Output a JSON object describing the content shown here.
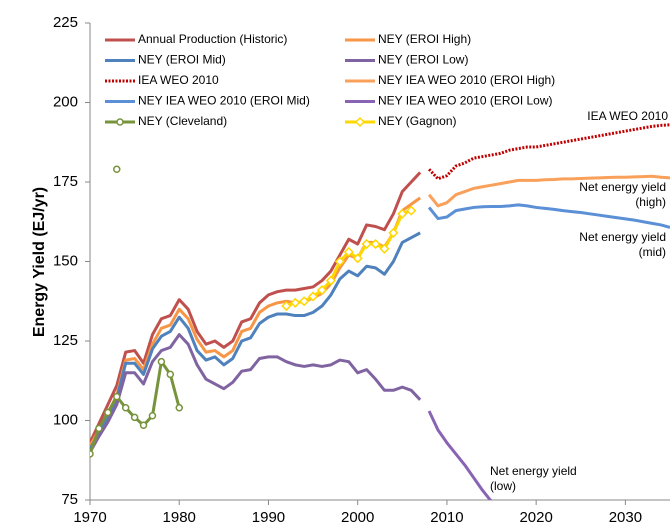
{
  "chart_data": {
    "type": "line",
    "y_label": "Energy Yield (EJ/yr)",
    "xlim": [
      1970,
      2035
    ],
    "xticks": [
      1970,
      1980,
      1990,
      2000,
      2010,
      2020,
      2030
    ],
    "ylim": [
      75,
      225
    ],
    "yticks": [
      75,
      100,
      125,
      150,
      175,
      200,
      225
    ],
    "grid": false,
    "series": [
      {
        "name": "Annual Production (Historic)",
        "color": "#c0504d",
        "x": [
          1970,
          1971,
          1972,
          1973,
          1974,
          1975,
          1976,
          1977,
          1978,
          1979,
          1980,
          1981,
          1982,
          1983,
          1984,
          1985,
          1986,
          1987,
          1988,
          1989,
          1990,
          1991,
          1992,
          1993,
          1994,
          1995,
          1996,
          1997,
          1998,
          1999,
          2000,
          2001,
          2002,
          2003,
          2004,
          2005,
          2006,
          2007
        ],
        "values": [
          93,
          99,
          105,
          111,
          121.5,
          122,
          118,
          127,
          132,
          133,
          138,
          135,
          128,
          124,
          125,
          123,
          125,
          131,
          132,
          137,
          139.5,
          140.5,
          141,
          141,
          141.5,
          142,
          144,
          147,
          152,
          157,
          155.5,
          161.5,
          161,
          160,
          165,
          172,
          175,
          178
        ]
      },
      {
        "name": "NEY (EROI High)",
        "color": "#f79646",
        "x": [
          1970,
          1971,
          1972,
          1973,
          1974,
          1975,
          1976,
          1977,
          1978,
          1979,
          1980,
          1981,
          1982,
          1983,
          1984,
          1985,
          1986,
          1987,
          1988,
          1989,
          1990,
          1991,
          1992,
          1993,
          1994,
          1995,
          1996,
          1997,
          1998,
          1999,
          2000,
          2001,
          2002,
          2003,
          2004,
          2005,
          2006,
          2007
        ],
        "values": [
          92,
          97,
          102,
          108,
          119,
          119.5,
          116,
          124,
          129,
          130,
          135,
          132,
          125.5,
          121.5,
          122,
          120,
          122,
          128,
          129,
          134,
          136,
          137,
          137.5,
          137,
          137.5,
          138.5,
          140,
          143,
          148,
          152,
          151,
          156,
          156,
          154.5,
          159,
          166,
          168,
          170
        ]
      },
      {
        "name": "NEY (EROI Mid)",
        "color": "#4f81bd",
        "x": [
          1970,
          1971,
          1972,
          1973,
          1974,
          1975,
          1976,
          1977,
          1978,
          1979,
          1980,
          1981,
          1982,
          1983,
          1984,
          1985,
          1986,
          1987,
          1988,
          1989,
          1990,
          1991,
          1992,
          1993,
          1994,
          1995,
          1996,
          1997,
          1998,
          1999,
          2000,
          2001,
          2002,
          2003,
          2004,
          2005,
          2006,
          2007
        ],
        "values": [
          91,
          96,
          101,
          107,
          118,
          118,
          114.5,
          122.5,
          126.5,
          128,
          132.5,
          129,
          122,
          119,
          120,
          117.5,
          119.5,
          125,
          126,
          130.5,
          132.5,
          133.5,
          133.5,
          133,
          133,
          134,
          136,
          139.5,
          144.5,
          147,
          145.5,
          148.5,
          148,
          146,
          150,
          156,
          157.5,
          159
        ]
      },
      {
        "name": "NEY (EROI Low)",
        "color": "#8064a2",
        "x": [
          1970,
          1971,
          1972,
          1973,
          1974,
          1975,
          1976,
          1977,
          1978,
          1979,
          1980,
          1981,
          1982,
          1983,
          1984,
          1985,
          1986,
          1987,
          1988,
          1989,
          1990,
          1991,
          1992,
          1993,
          1994,
          1995,
          1996,
          1997,
          1998,
          1999,
          2000,
          2001,
          2002,
          2003,
          2004,
          2005,
          2006,
          2007
        ],
        "values": [
          90,
          95,
          99.5,
          105,
          115,
          115,
          111.5,
          118.5,
          122,
          123,
          127,
          124,
          117.5,
          113,
          111.5,
          110,
          112,
          115.5,
          116,
          119.5,
          120,
          120,
          118.5,
          117.5,
          117,
          117.5,
          117,
          117.5,
          119,
          118.5,
          115,
          116,
          113,
          109.5,
          109.5,
          110.5,
          109.5,
          106.5
        ]
      },
      {
        "name": "IEA WEO 2010",
        "color": "#c00000",
        "dashed": true,
        "x": [
          2008,
          2009,
          2010,
          2011,
          2012,
          2013,
          2014,
          2015,
          2016,
          2017,
          2018,
          2019,
          2020,
          2021,
          2022,
          2023,
          2024,
          2025,
          2026,
          2027,
          2028,
          2029,
          2030,
          2031,
          2032,
          2033,
          2034,
          2035
        ],
        "values": [
          179,
          176,
          177,
          180,
          181,
          182.5,
          183,
          183.5,
          184,
          185,
          185.5,
          186,
          186,
          186.5,
          187,
          187.5,
          188,
          188.5,
          189,
          189.5,
          190,
          190.5,
          191,
          191.5,
          192,
          192.5,
          192.8,
          193
        ]
      },
      {
        "name": "NEY IEA WEO 2010 (EROI High)",
        "color": "#f9a05a",
        "x": [
          2008,
          2009,
          2010,
          2011,
          2012,
          2013,
          2014,
          2015,
          2016,
          2017,
          2018,
          2019,
          2020,
          2021,
          2022,
          2023,
          2024,
          2025,
          2026,
          2027,
          2028,
          2029,
          2030,
          2031,
          2032,
          2033,
          2034,
          2035
        ],
        "values": [
          171,
          167.5,
          168.5,
          171,
          172,
          173,
          173.5,
          174,
          174.5,
          175,
          175.5,
          175.5,
          175.5,
          175.7,
          175.8,
          176,
          176,
          176.1,
          176.2,
          176.3,
          176.4,
          176.5,
          176.5,
          176.6,
          176.7,
          176.8,
          176.5,
          176.3
        ]
      },
      {
        "name": "NEY IEA WEO 2010 (EROI Mid)",
        "color": "#5b8fd6",
        "x": [
          2008,
          2009,
          2010,
          2011,
          2012,
          2013,
          2014,
          2015,
          2016,
          2017,
          2018,
          2019,
          2020,
          2021,
          2022,
          2023,
          2024,
          2025,
          2026,
          2027,
          2028,
          2029,
          2030,
          2031,
          2032,
          2033,
          2034,
          2035
        ],
        "values": [
          167,
          163.5,
          164,
          166,
          166.5,
          167,
          167.2,
          167.3,
          167.3,
          167.5,
          167.8,
          167.5,
          167,
          166.7,
          166.4,
          166,
          165.7,
          165.4,
          165,
          164.6,
          164.2,
          163.8,
          163.4,
          163,
          162.5,
          162,
          161.5,
          160.7
        ]
      },
      {
        "name": "NEY IEA WEO 2010 (EROI Low)",
        "color": "#8a64b4",
        "x": [
          2008,
          2009,
          2010,
          2011,
          2012,
          2013,
          2014,
          2015
        ],
        "values": [
          103,
          97,
          93,
          89.5,
          86,
          82,
          78,
          74.5
        ]
      },
      {
        "name": "NEY (Cleveland)",
        "color": "#77933c",
        "marker": "circle",
        "x": [
          1970,
          1971,
          1972,
          1973,
          1974,
          1975,
          1976,
          1977,
          1978,
          1979,
          1980
        ],
        "values": [
          89.5,
          97.5,
          102.5,
          107.5,
          104,
          101,
          98.5,
          101.5,
          118.5,
          114.5,
          104
        ],
        "outliers": {
          "x": [
            1973
          ],
          "values": [
            179
          ]
        }
      },
      {
        "name": "NEY (Gagnon)",
        "color": "#ffd700",
        "marker": "diamond",
        "x": [
          1992,
          1993,
          1994,
          1995,
          1996,
          1997,
          1998,
          1999,
          2000,
          2001,
          2002,
          2003,
          2004,
          2005,
          2006
        ],
        "values": [
          136,
          137,
          137.5,
          139,
          141,
          144,
          150,
          153,
          151,
          155.5,
          155.5,
          154,
          159,
          165,
          166
        ]
      }
    ],
    "annotations": [
      [
        "IEA WEO 2010"
      ],
      [
        "Net energy yield",
        "(high)"
      ],
      [
        "Net energy yield",
        "(mid)"
      ],
      [
        "Net energy yield",
        "(low)"
      ]
    ]
  }
}
